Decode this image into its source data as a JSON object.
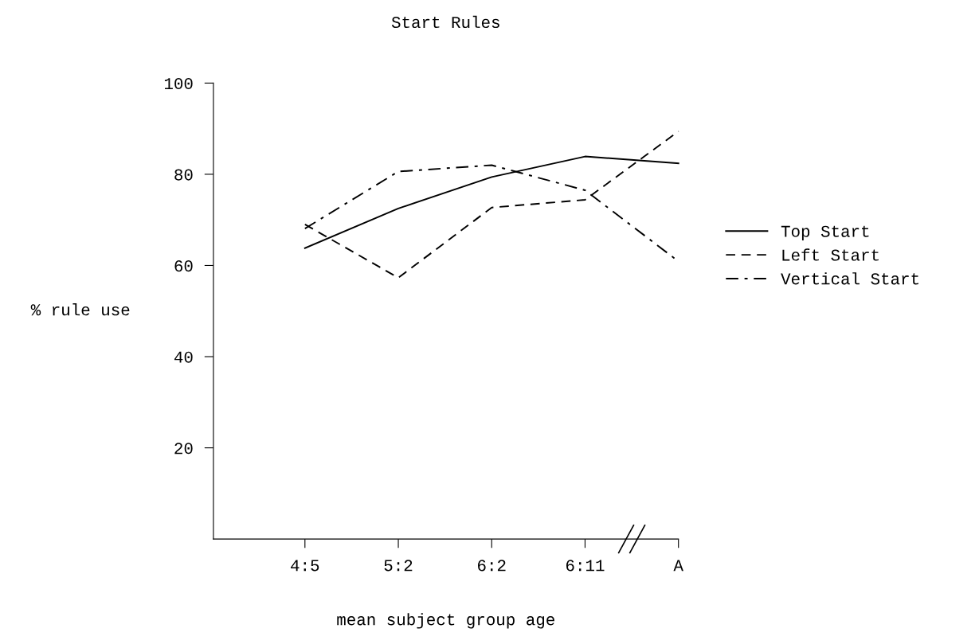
{
  "chart_data": {
    "type": "line",
    "title": "Start Rules",
    "xlabel": "mean subject group age",
    "ylabel": "% rule use",
    "categories": [
      "4:5",
      "5:2",
      "6:2",
      "6:11",
      "A"
    ],
    "series": [
      {
        "name": "Top Start",
        "color": "#000000",
        "line_style": "solid",
        "values": [
          63.8,
          72.5,
          79.4,
          83.9,
          82.4
        ]
      },
      {
        "name": "Left Start",
        "color": "#000000",
        "line_style": "dashed",
        "values": [
          69,
          57.3,
          72.7,
          74.4,
          89.4
        ]
      },
      {
        "name": "Vertical Start",
        "color": "#000000",
        "line_style": "dashdot",
        "values": [
          68.1,
          80.6,
          82,
          76.5,
          60.9
        ]
      }
    ],
    "ylim": [
      0,
      100
    ],
    "yticks": [
      20,
      40,
      60,
      80,
      100
    ],
    "grid": false,
    "legend": "right",
    "marker": "none"
  }
}
